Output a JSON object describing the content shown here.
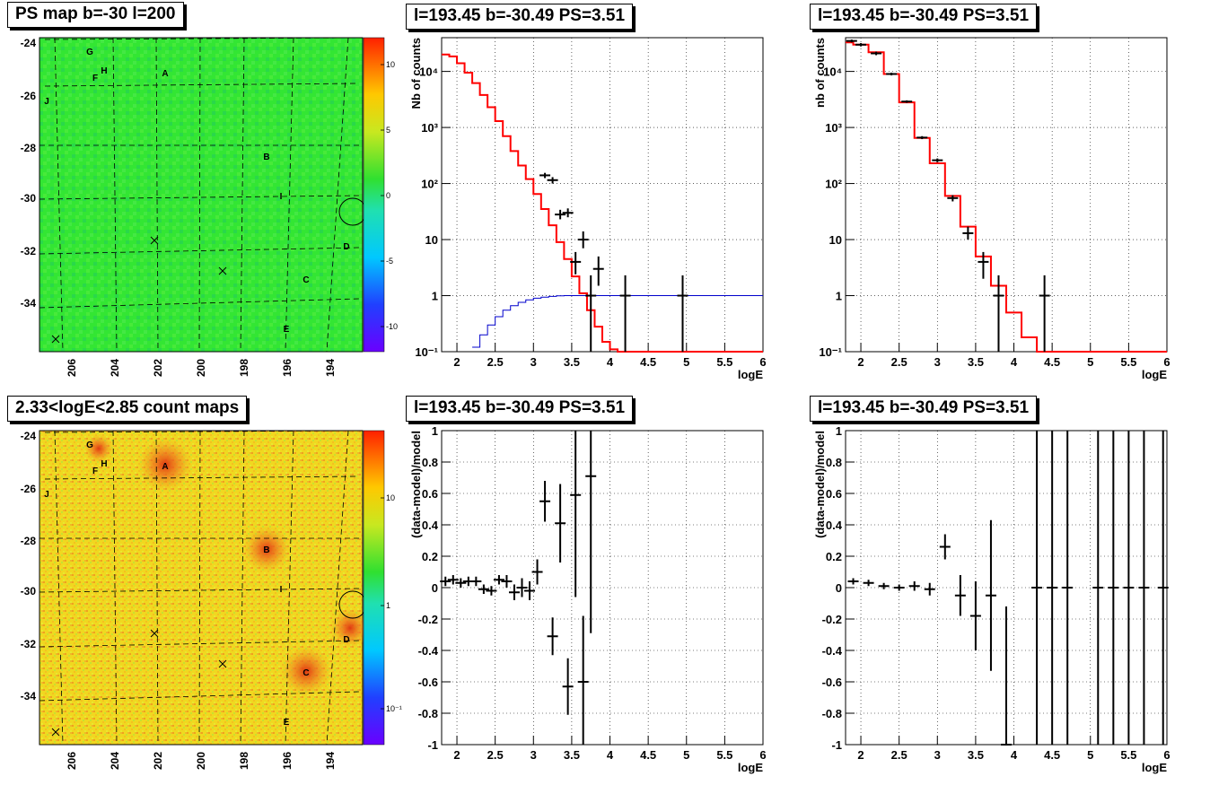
{
  "panels": {
    "map_ps": {
      "title": "PS map b=-30 l=200"
    },
    "map_counts": {
      "title": "2.33<logE<2.85 count maps"
    },
    "spectrum_left": {
      "title": "l=193.45 b=-30.49 PS=3.51"
    },
    "spectrum_right": {
      "title": "l=193.45 b=-30.49 PS=3.51"
    },
    "ratio_left": {
      "title": "l=193.45 b=-30.49 PS=3.51"
    },
    "ratio_right": {
      "title": "l=193.45 b=-30.49 PS=3.51"
    }
  },
  "map_axes": {
    "y_ticks": [
      "-24",
      "-26",
      "-28",
      "-30",
      "-32",
      "-34"
    ],
    "x_ticks": [
      "206",
      "204",
      "202",
      "200",
      "198",
      "196",
      "194"
    ],
    "source_labels": [
      "G",
      "H",
      "F",
      "A",
      "J",
      "B",
      "I",
      "D",
      "C",
      "E"
    ],
    "palette_ps_ticks": [
      "10",
      "5",
      "0",
      "-5",
      "-10"
    ],
    "palette_counts_ticks": [
      "10",
      "1",
      "10⁻¹"
    ]
  },
  "colors": {
    "model_line": "#ff0000",
    "efficiency_line": "#0000cc",
    "data": "#000000",
    "ps_map_bg": "#33e633",
    "count_map_bg": "#f0d820"
  },
  "chart_data": [
    {
      "type": "line",
      "panel": "spectrum_left",
      "title": "l=193.45 b=-30.49 PS=3.51",
      "xlabel": "logE",
      "ylabel": "Nb of counts",
      "xlim": [
        1.8,
        6
      ],
      "ylim": [
        0.1,
        40000
      ],
      "log_y": true,
      "grid": true,
      "x_ticks": [
        "2",
        "2.5",
        "3",
        "3.5",
        "4",
        "4.5",
        "5",
        "5.5",
        "6"
      ],
      "y_ticks": [
        "10⁻¹",
        "1",
        "10",
        "10²",
        "10³",
        "10⁴"
      ],
      "model_steps": {
        "edges": [
          1.8,
          1.9,
          2.0,
          2.1,
          2.2,
          2.3,
          2.4,
          2.5,
          2.6,
          2.7,
          2.8,
          2.9,
          3.0,
          3.1,
          3.2,
          3.3,
          3.4,
          3.5,
          3.6,
          3.7,
          3.8,
          3.9,
          4.0,
          4.1,
          4.2,
          6.0
        ],
        "values": [
          20000,
          18500,
          14000,
          9500,
          6200,
          3800,
          2300,
          1300,
          700,
          380,
          210,
          120,
          65,
          35,
          18,
          9,
          4.5,
          2.2,
          1.1,
          0.55,
          0.28,
          0.15,
          0.11,
          0.1,
          0.1
        ]
      },
      "efficiency_steps": {
        "edges": [
          2.2,
          2.3,
          2.4,
          2.5,
          2.6,
          2.7,
          2.8,
          2.9,
          3.0,
          3.1,
          3.2,
          3.3,
          3.4,
          3.5,
          6.0
        ],
        "values": [
          0.12,
          0.2,
          0.3,
          0.42,
          0.55,
          0.66,
          0.76,
          0.84,
          0.9,
          0.94,
          0.97,
          0.99,
          1.0,
          1.0
        ]
      },
      "data_points": [
        {
          "x": 3.15,
          "y": 140,
          "ylo": 125,
          "yhi": 155
        },
        {
          "x": 3.25,
          "y": 115,
          "ylo": 100,
          "yhi": 130
        },
        {
          "x": 3.35,
          "y": 28,
          "ylo": 23,
          "yhi": 34
        },
        {
          "x": 3.45,
          "y": 30,
          "ylo": 25,
          "yhi": 36
        },
        {
          "x": 3.55,
          "y": 4,
          "ylo": 2.4,
          "yhi": 6
        },
        {
          "x": 3.65,
          "y": 10,
          "ylo": 7,
          "yhi": 14
        },
        {
          "x": 3.75,
          "y": 1,
          "ylo": 0.1,
          "yhi": 2.3
        },
        {
          "x": 3.85,
          "y": 3,
          "ylo": 1.5,
          "yhi": 5
        },
        {
          "x": 4.2,
          "y": 1,
          "ylo": 0.1,
          "yhi": 2.3
        },
        {
          "x": 4.95,
          "y": 1,
          "ylo": 0.1,
          "yhi": 2.3
        }
      ]
    },
    {
      "type": "line",
      "panel": "spectrum_right",
      "title": "l=193.45 b=-30.49 PS=3.51",
      "xlabel": "logE",
      "ylabel": "nb of counts",
      "xlim": [
        1.8,
        6
      ],
      "ylim": [
        0.1,
        40000
      ],
      "log_y": true,
      "grid": true,
      "x_ticks": [
        "2",
        "2.5",
        "3",
        "3.5",
        "4",
        "4.5",
        "5",
        "5.5",
        "6"
      ],
      "y_ticks": [
        "10⁻¹",
        "1",
        "10",
        "10²",
        "10³",
        "10⁴"
      ],
      "model_steps": {
        "edges": [
          1.8,
          1.9,
          2.1,
          2.3,
          2.5,
          2.7,
          2.9,
          3.1,
          3.3,
          3.5,
          3.7,
          3.9,
          4.1,
          4.3,
          4.5,
          6.0
        ],
        "values": [
          33000,
          30000,
          22000,
          9000,
          2800,
          650,
          230,
          60,
          17,
          5,
          1.5,
          0.5,
          0.18,
          0.1,
          0.1
        ]
      },
      "data_points": [
        {
          "x": 1.88,
          "y": 35000,
          "ylo": 33000,
          "yhi": 37000
        },
        {
          "x": 2.0,
          "y": 30000,
          "ylo": 28000,
          "yhi": 32000
        },
        {
          "x": 2.2,
          "y": 21000,
          "ylo": 19500,
          "yhi": 22500
        },
        {
          "x": 2.4,
          "y": 9000,
          "ylo": 8500,
          "yhi": 9500
        },
        {
          "x": 2.6,
          "y": 2900,
          "ylo": 2750,
          "yhi": 3050
        },
        {
          "x": 2.8,
          "y": 660,
          "ylo": 620,
          "yhi": 700
        },
        {
          "x": 3.0,
          "y": 260,
          "ylo": 240,
          "yhi": 280
        },
        {
          "x": 3.2,
          "y": 55,
          "ylo": 48,
          "yhi": 62
        },
        {
          "x": 3.4,
          "y": 13,
          "ylo": 10,
          "yhi": 17
        },
        {
          "x": 3.6,
          "y": 4,
          "ylo": 2,
          "yhi": 6
        },
        {
          "x": 3.8,
          "y": 1,
          "ylo": 0.1,
          "yhi": 2.3
        },
        {
          "x": 4.4,
          "y": 1,
          "ylo": 0.1,
          "yhi": 2.3
        }
      ]
    },
    {
      "type": "scatter",
      "panel": "ratio_left",
      "title": "l=193.45 b=-30.49 PS=3.51",
      "xlabel": "logE",
      "ylabel": "(data-model)/model",
      "xlim": [
        1.8,
        6
      ],
      "ylim": [
        -1,
        1
      ],
      "grid": true,
      "x_ticks": [
        "2",
        "2.5",
        "3",
        "3.5",
        "4",
        "4.5",
        "5",
        "5.5",
        "6"
      ],
      "y_ticks": [
        "-1",
        "-0.8",
        "-0.6",
        "-0.4",
        "-0.2",
        "0",
        "0.2",
        "0.4",
        "0.6",
        "0.8",
        "1"
      ],
      "data_points": [
        {
          "x": 1.85,
          "y": 0.04,
          "err": 0.03
        },
        {
          "x": 1.95,
          "y": 0.05,
          "err": 0.03
        },
        {
          "x": 2.05,
          "y": 0.03,
          "err": 0.03
        },
        {
          "x": 2.15,
          "y": 0.04,
          "err": 0.03
        },
        {
          "x": 2.25,
          "y": 0.04,
          "err": 0.03
        },
        {
          "x": 2.35,
          "y": -0.01,
          "err": 0.03
        },
        {
          "x": 2.45,
          "y": -0.02,
          "err": 0.03
        },
        {
          "x": 2.55,
          "y": 0.05,
          "err": 0.03
        },
        {
          "x": 2.65,
          "y": 0.04,
          "err": 0.04
        },
        {
          "x": 2.75,
          "y": -0.03,
          "err": 0.05
        },
        {
          "x": 2.85,
          "y": 0.0,
          "err": 0.06
        },
        {
          "x": 2.95,
          "y": -0.02,
          "err": 0.06
        },
        {
          "x": 3.05,
          "y": 0.1,
          "err": 0.08
        },
        {
          "x": 3.15,
          "y": 0.55,
          "err": 0.13
        },
        {
          "x": 3.25,
          "y": -0.31,
          "err": 0.12
        },
        {
          "x": 3.35,
          "y": 0.41,
          "err": 0.25
        },
        {
          "x": 3.45,
          "y": -0.63,
          "err": 0.18
        },
        {
          "x": 3.55,
          "y": 0.59,
          "err": 0.65
        },
        {
          "x": 3.65,
          "y": -0.6,
          "err": 0.42
        },
        {
          "x": 3.75,
          "y": 0.71,
          "err": 1.0
        }
      ]
    },
    {
      "type": "scatter",
      "panel": "ratio_right",
      "title": "l=193.45 b=-30.49 PS=3.51",
      "xlabel": "logE",
      "ylabel": "(data-model)/model",
      "xlim": [
        1.8,
        6
      ],
      "ylim": [
        -1,
        1
      ],
      "grid": true,
      "x_ticks": [
        "2",
        "2.5",
        "3",
        "3.5",
        "4",
        "4.5",
        "5",
        "5.5",
        "6"
      ],
      "y_ticks": [
        "-1",
        "-0.8",
        "-0.6",
        "-0.4",
        "-0.2",
        "0",
        "0.2",
        "0.4",
        "0.6",
        "0.8",
        "1"
      ],
      "data_points": [
        {
          "x": 1.9,
          "y": 0.04,
          "err": 0.02
        },
        {
          "x": 2.1,
          "y": 0.03,
          "err": 0.02
        },
        {
          "x": 2.3,
          "y": 0.01,
          "err": 0.02
        },
        {
          "x": 2.5,
          "y": 0.0,
          "err": 0.02
        },
        {
          "x": 2.7,
          "y": 0.01,
          "err": 0.03
        },
        {
          "x": 2.9,
          "y": -0.01,
          "err": 0.04
        },
        {
          "x": 3.1,
          "y": 0.26,
          "err": 0.08
        },
        {
          "x": 3.3,
          "y": -0.05,
          "err": 0.13
        },
        {
          "x": 3.5,
          "y": -0.18,
          "err": 0.22
        },
        {
          "x": 3.7,
          "y": -0.05,
          "err": 0.48
        },
        {
          "x": 3.9,
          "y": -1.0,
          "err": 0.88
        },
        {
          "x": 4.3,
          "y": 0.0,
          "err": 1.5
        },
        {
          "x": 4.5,
          "y": 0.0,
          "err": 1.5
        },
        {
          "x": 4.7,
          "y": 0.0,
          "err": 1.5
        },
        {
          "x": 5.1,
          "y": 0.0,
          "err": 1.5
        },
        {
          "x": 5.3,
          "y": 0.0,
          "err": 1.5
        },
        {
          "x": 5.5,
          "y": 0.0,
          "err": 1.5
        },
        {
          "x": 5.7,
          "y": 0.0,
          "err": 1.5
        },
        {
          "x": 5.95,
          "y": 0.0,
          "err": 1.5
        }
      ]
    }
  ]
}
